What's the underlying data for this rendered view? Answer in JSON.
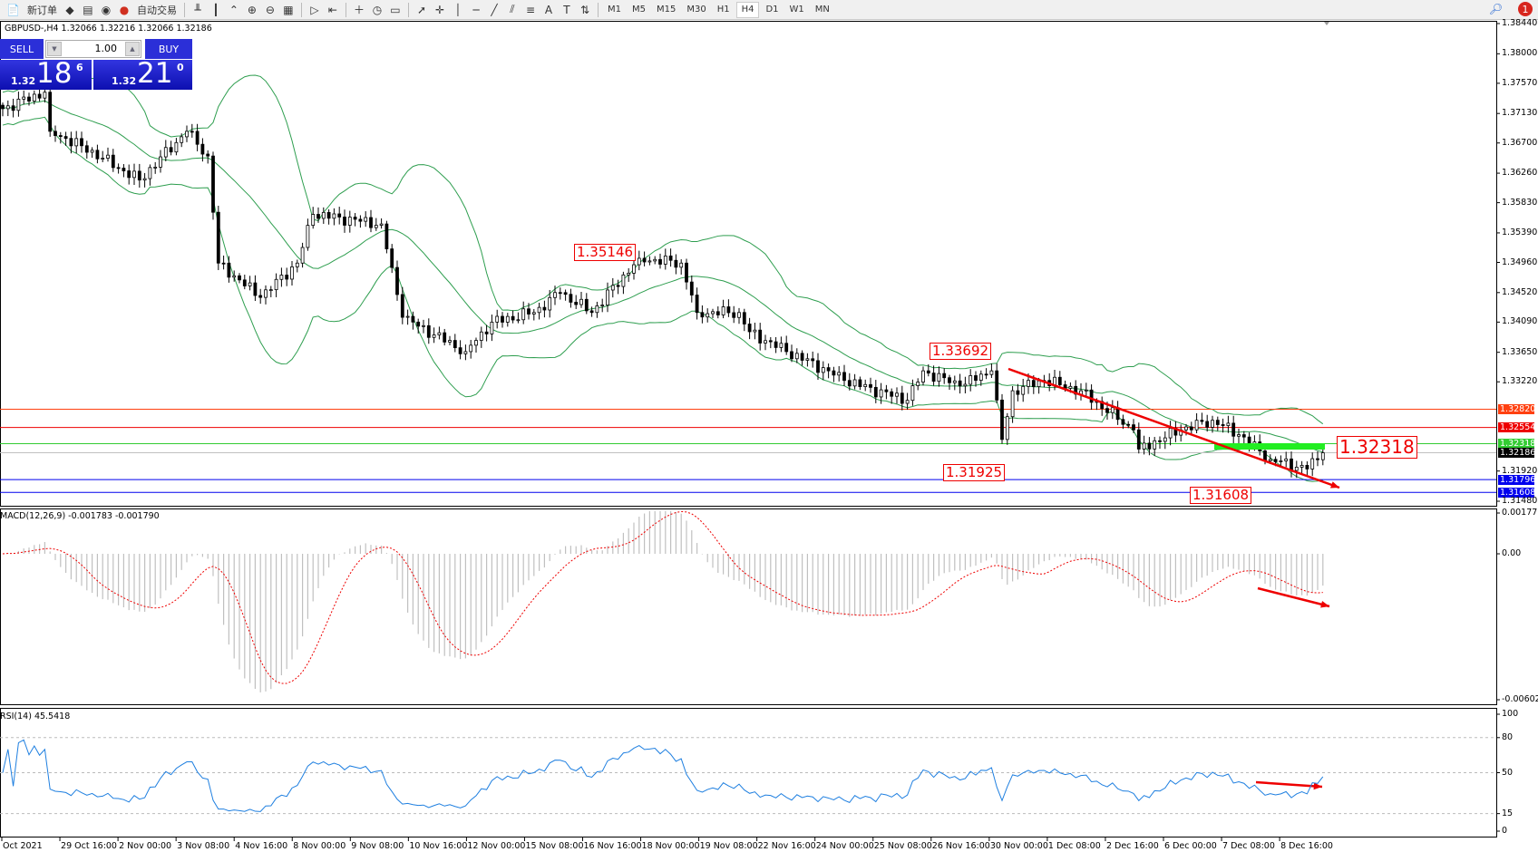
{
  "toolbar": {
    "new_order": "新订单",
    "auto_trading": "自动交易",
    "icons": [
      "new-order-icon",
      "strategy-tester-icon",
      "market-watch-icon",
      "signals-icon",
      "auto-trading-icon",
      "bar-chart-icon",
      "candlestick-icon",
      "line-chart-icon",
      "zoom-in-icon",
      "zoom-out-icon",
      "tile-windows-icon",
      "auto-scroll-icon",
      "chart-shift-icon",
      "indicators-icon",
      "periods-icon",
      "templates-icon",
      "cursor-icon",
      "crosshair-icon",
      "vertical-line-icon",
      "horizontal-line-icon",
      "trendline-icon",
      "equidistant-channel-icon",
      "fibonacci-icon",
      "text-icon",
      "text-label-icon",
      "arrows-icon"
    ],
    "timeframes": [
      "M1",
      "M5",
      "M15",
      "M30",
      "H1",
      "H4",
      "D1",
      "W1",
      "MN"
    ],
    "active_timeframe": "H4",
    "notification_count": "1"
  },
  "chart": {
    "symbol_line": "GBPUSD-,H4  1.32066 1.32216 1.32066 1.32186",
    "trade_panel": {
      "sell": "SELL",
      "buy": "BUY",
      "lot": "1.00",
      "sell_small": "1.32",
      "sell_big": "18",
      "sell_sup": "6",
      "buy_small": "1.32",
      "buy_big": "21",
      "buy_sup": "0"
    },
    "price_axis": [
      "1.38440",
      "1.38000",
      "1.37570",
      "1.37130",
      "1.36700",
      "1.36260",
      "1.35830",
      "1.35390",
      "1.34960",
      "1.34520",
      "1.34090",
      "1.33650",
      "1.33220",
      "1.31920",
      "1.31480"
    ],
    "levels": [
      {
        "price": 1.3282,
        "label": "1.32820",
        "color": "#ff4010"
      },
      {
        "price": 1.32554,
        "label": "1.32554",
        "color": "#ee0000"
      },
      {
        "price": 1.32318,
        "label": "1.32318",
        "color": "#33cc33"
      },
      {
        "price": 1.32186,
        "label": "1.32186",
        "color": "#000000"
      },
      {
        "price": 1.31796,
        "label": "1.31796",
        "color": "#0000ee"
      },
      {
        "price": 1.31608,
        "label": "1.31608",
        "color": "#0000ee"
      }
    ],
    "annotations": [
      "1.35146",
      "1.33692",
      "1.31925",
      "1.31608",
      "1.32318"
    ],
    "colors": {
      "bands": "#2e9e4f",
      "annotation": "#ee0000",
      "macd_hist": "#c0c0c0",
      "macd_signal": "#ee0000",
      "rsi": "#1e7fe0"
    }
  },
  "macd": {
    "label": "MACD(12,26,9) -0.001783 -0.001790",
    "axis": [
      "0.001777",
      "0.00",
      "-0.00602"
    ]
  },
  "rsi": {
    "label": "RSI(14) 45.5418",
    "axis": [
      "100",
      "80",
      "50",
      "15",
      "0"
    ],
    "levels": [
      80,
      50,
      15
    ]
  },
  "time_axis": [
    "Oct 2021",
    "29 Oct 16:00",
    "2 Nov 00:00",
    "3 Nov 08:00",
    "4 Nov 16:00",
    "8 Nov 00:00",
    "9 Nov 08:00",
    "10 Nov 16:00",
    "12 Nov 00:00",
    "15 Nov 08:00",
    "16 Nov 16:00",
    "18 Nov 00:00",
    "19 Nov 08:00",
    "22 Nov 16:00",
    "24 Nov 00:00",
    "25 Nov 08:00",
    "26 Nov 16:00",
    "30 Nov 00:00",
    "1 Dec 08:00",
    "2 Dec 16:00",
    "6 Dec 00:00",
    "7 Dec 08:00",
    "8 Dec 16:00"
  ],
  "chart_data": {
    "type": "candlestick",
    "symbol": "GBPUSD",
    "timeframe": "H4",
    "ylim": [
      1.3148,
      1.3844
    ],
    "close_path_bar_price": [
      [
        0,
        1.372
      ],
      [
        8,
        1.3744
      ],
      [
        9,
        1.3687
      ],
      [
        15,
        1.3666
      ],
      [
        26,
        1.3616
      ],
      [
        35,
        1.3687
      ],
      [
        39,
        1.3651
      ],
      [
        41,
        1.3495
      ],
      [
        49,
        1.3445
      ],
      [
        56,
        1.3495
      ],
      [
        59,
        1.3566
      ],
      [
        72,
        1.3552
      ],
      [
        76,
        1.3416
      ],
      [
        88,
        1.3366
      ],
      [
        93,
        1.3409
      ],
      [
        101,
        1.3423
      ],
      [
        106,
        1.3452
      ],
      [
        112,
        1.3423
      ],
      [
        121,
        1.3502
      ],
      [
        129,
        1.3495
      ],
      [
        132,
        1.3423
      ],
      [
        140,
        1.3423
      ],
      [
        142,
        1.3395
      ],
      [
        149,
        1.3366
      ],
      [
        157,
        1.3338
      ],
      [
        160,
        1.3324
      ],
      [
        172,
        1.3295
      ],
      [
        175,
        1.3338
      ],
      [
        182,
        1.3316
      ],
      [
        188,
        1.3338
      ],
      [
        190,
        1.3238
      ],
      [
        192,
        1.3309
      ],
      [
        198,
        1.3324
      ],
      [
        205,
        1.3309
      ],
      [
        215,
        1.3252
      ],
      [
        216,
        1.3224
      ],
      [
        224,
        1.3252
      ],
      [
        230,
        1.3266
      ],
      [
        235,
        1.3245
      ],
      [
        241,
        1.3209
      ],
      [
        248,
        1.3195
      ],
      [
        251,
        1.32186
      ]
    ],
    "indicators": [
      "Bollinger Bands",
      "MACD(12,26,9)",
      "RSI(14)"
    ]
  }
}
